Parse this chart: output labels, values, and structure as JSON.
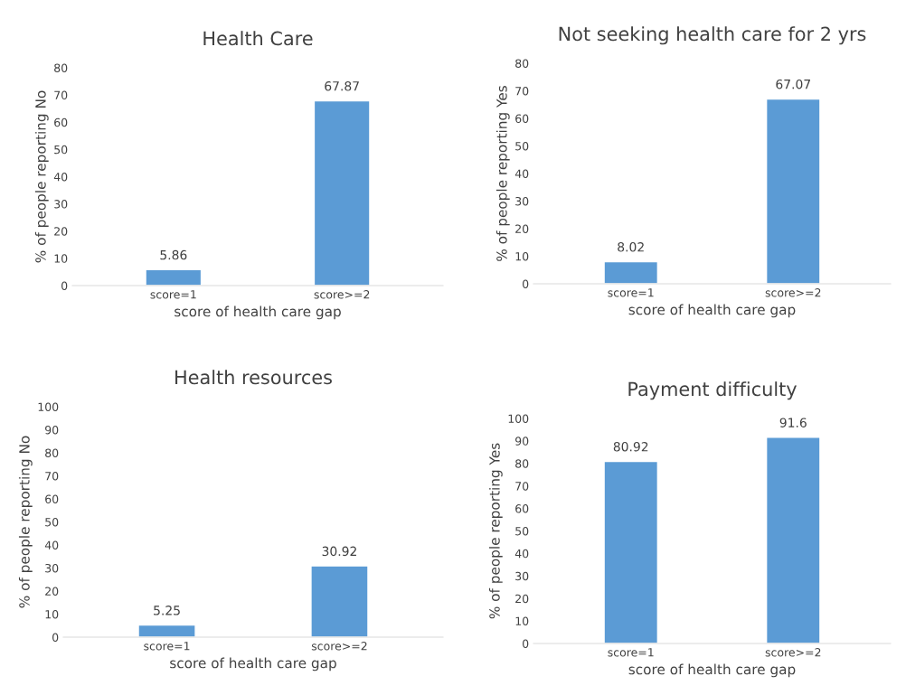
{
  "chart_data": [
    {
      "type": "bar",
      "title": "Health Care",
      "xlabel": "score of health care gap",
      "ylabel": "% of people reporting No",
      "categories": [
        "score=1",
        "score>=2"
      ],
      "values": [
        5.86,
        67.87
      ],
      "color": "#5b9bd5",
      "ylim": [
        0,
        80
      ],
      "yticks": [
        0,
        10,
        20,
        30,
        40,
        50,
        60,
        70,
        80
      ],
      "data_labels": true
    },
    {
      "type": "bar",
      "title": "Not seeking health care for 2 yrs",
      "xlabel": "score of health care gap",
      "ylabel": "% of people reporting Yes",
      "categories": [
        "score=1",
        "score>=2"
      ],
      "values": [
        8.02,
        67.07
      ],
      "color": "#5b9bd5",
      "ylim": [
        0,
        80
      ],
      "yticks": [
        0,
        10,
        20,
        30,
        40,
        50,
        60,
        70,
        80
      ],
      "data_labels": true
    },
    {
      "type": "bar",
      "title": "Health resources",
      "xlabel": "score of health care gap",
      "ylabel": "% of people reporting No",
      "categories": [
        "score=1",
        "score>=2"
      ],
      "values": [
        5.25,
        30.92
      ],
      "color": "#5b9bd5",
      "ylim": [
        0,
        100
      ],
      "yticks": [
        0,
        10,
        20,
        30,
        40,
        50,
        60,
        70,
        80,
        90,
        100
      ],
      "data_labels": true
    },
    {
      "type": "bar",
      "title": "Payment difficulty",
      "xlabel": "score of health care gap",
      "ylabel": "% of people reporting Yes",
      "categories": [
        "score=1",
        "score>=2"
      ],
      "values": [
        80.92,
        91.6
      ],
      "color": "#5b9bd5",
      "ylim": [
        0,
        100
      ],
      "yticks": [
        0,
        10,
        20,
        30,
        40,
        50,
        60,
        70,
        80,
        90,
        100
      ],
      "data_labels": true
    }
  ]
}
